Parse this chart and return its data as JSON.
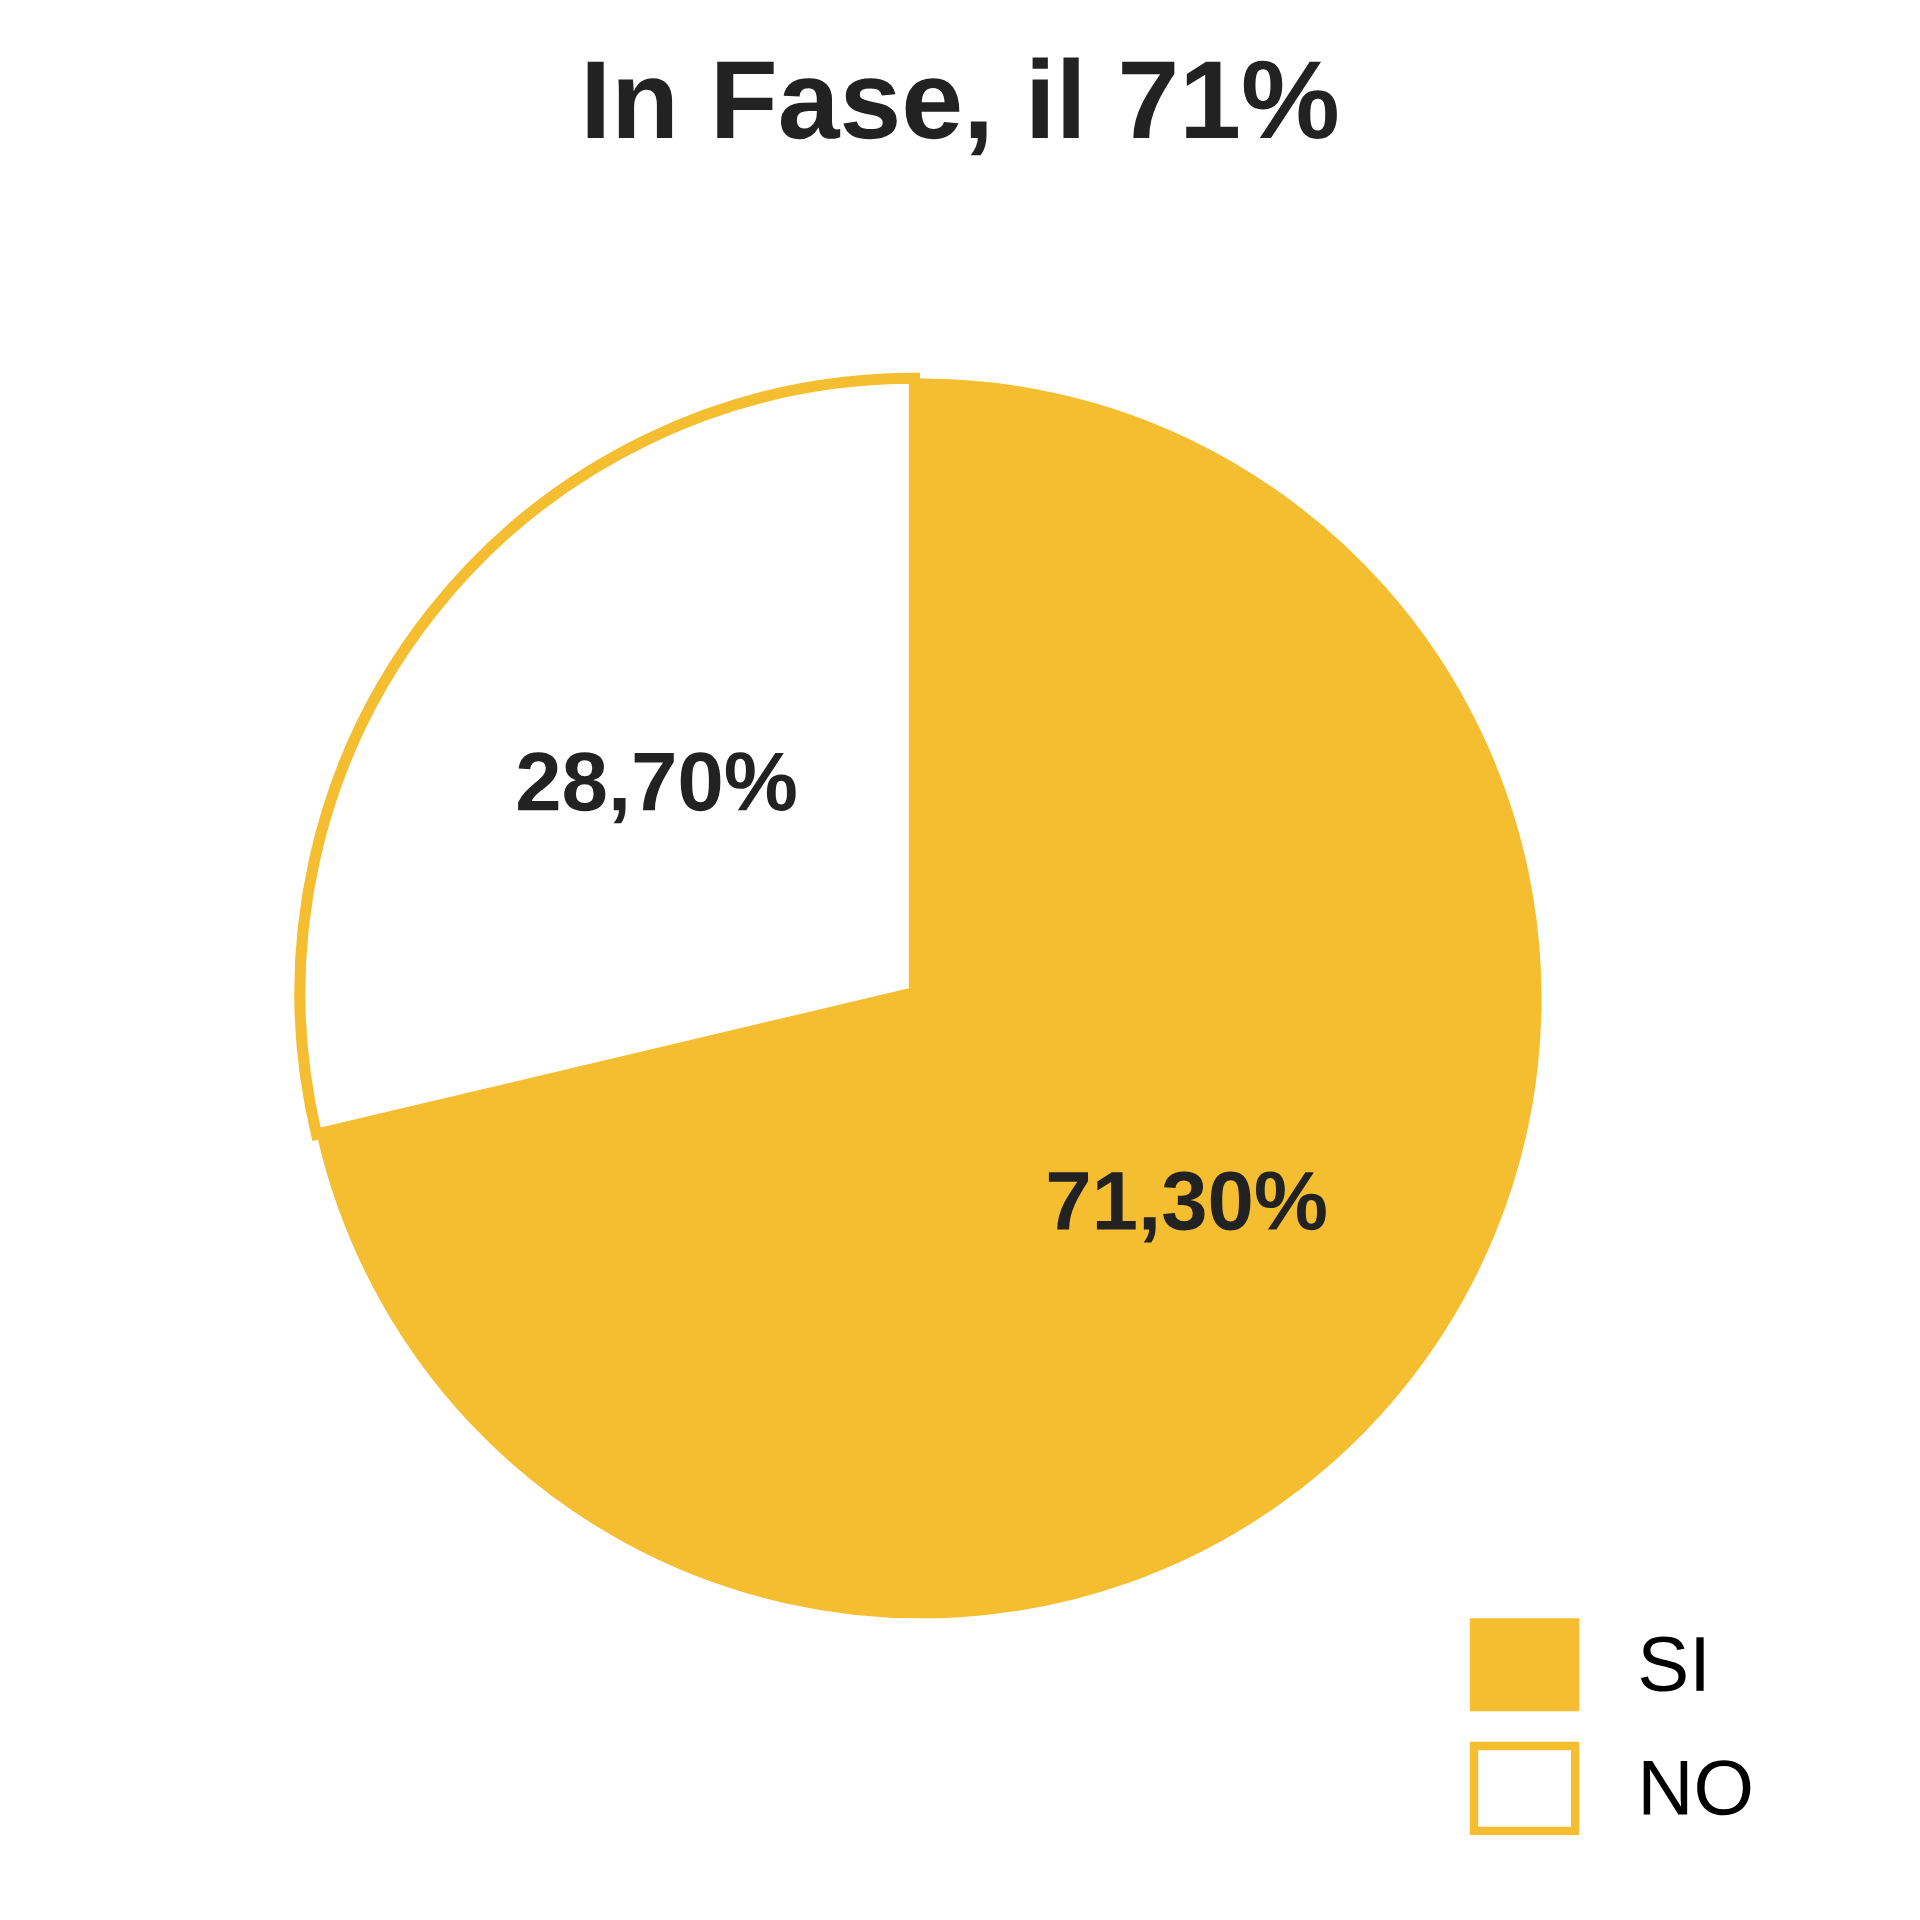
{
  "chart_data": {
    "type": "pie",
    "title": "In Fase, il 71%",
    "categories": [
      "SI",
      "NO"
    ],
    "values": [
      71.3,
      28.7
    ],
    "colors": [
      "#f5be30",
      "#ffffff"
    ],
    "value_labels": [
      "71,30%",
      "28,70%"
    ],
    "legend": "bottom right"
  }
}
